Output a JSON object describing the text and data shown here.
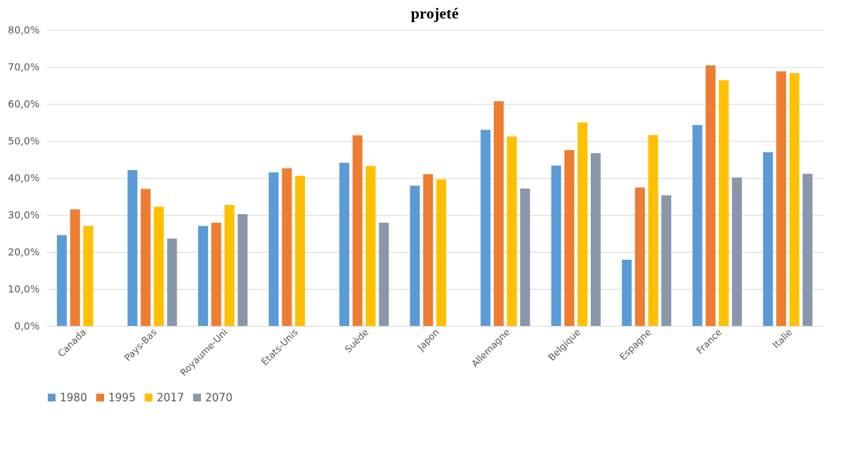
{
  "chart_data": {
    "type": "bar",
    "title": "projeté",
    "categories": [
      "Canada",
      "Pays-Bas",
      "Royaume-Uni",
      "États-Unis",
      "Suède",
      "Japon",
      "Allemagne",
      "Belgique",
      "Espagne",
      "France",
      "Italie"
    ],
    "series": [
      {
        "name": "1980",
        "color": "#5b9bd5",
        "values": [
          24.5,
          42.1,
          27.0,
          41.5,
          44.1,
          37.9,
          53.0,
          43.3,
          17.9,
          54.3,
          46.9
        ]
      },
      {
        "name": "1995",
        "color": "#ed7d31",
        "values": [
          31.5,
          37.0,
          27.9,
          42.6,
          51.5,
          41.0,
          60.7,
          47.5,
          37.4,
          70.4,
          68.8
        ]
      },
      {
        "name": "2017",
        "color": "#ffc000",
        "values": [
          27.0,
          32.2,
          32.7,
          40.6,
          43.2,
          39.6,
          51.2,
          55.0,
          51.6,
          66.4,
          68.3
        ]
      },
      {
        "name": "2070",
        "color": "#8a96aa",
        "values": [
          null,
          23.6,
          30.2,
          null,
          27.9,
          null,
          37.1,
          46.7,
          35.3,
          40.1,
          41.1
        ]
      }
    ],
    "ylim": [
      0,
      80
    ],
    "yticks": [
      {
        "value": 0,
        "label": "0,0%"
      },
      {
        "value": 10,
        "label": "10,0%"
      },
      {
        "value": 20,
        "label": "20,0%"
      },
      {
        "value": 30,
        "label": "30,0%"
      },
      {
        "value": 40,
        "label": "40,0%"
      },
      {
        "value": 50,
        "label": "50,0%"
      },
      {
        "value": 60,
        "label": "60,0%"
      },
      {
        "value": 70,
        "label": "70,0%"
      },
      {
        "value": 80,
        "label": "80,0%"
      }
    ],
    "grid": "y",
    "legend": "bottom"
  }
}
